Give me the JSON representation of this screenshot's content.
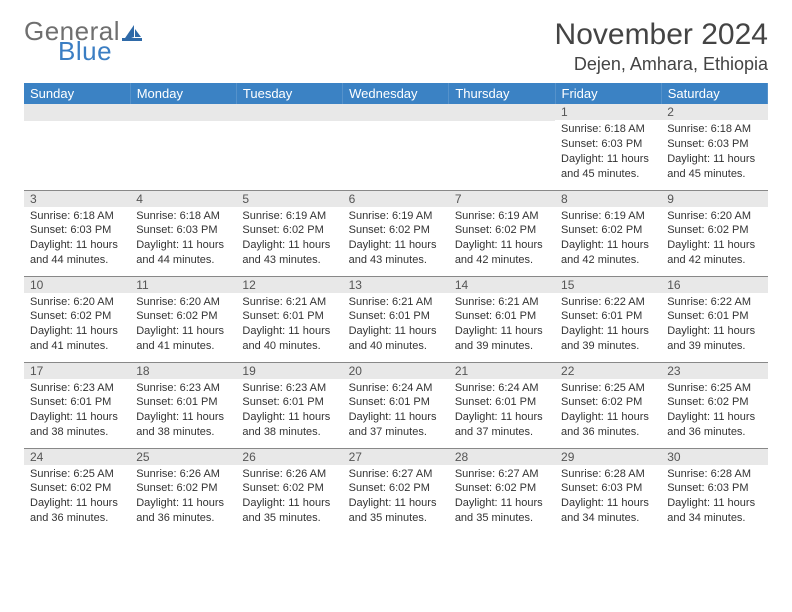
{
  "logo": {
    "word1": "General",
    "word2": "Blue"
  },
  "title": "November 2024",
  "location": "Dejen, Amhara, Ethiopia",
  "colors": {
    "header_bg": "#3b82c4",
    "header_text": "#ffffff",
    "daynum_bg": "#e8e8e8",
    "text": "#333333",
    "logo_gray": "#6f6f6f",
    "logo_blue": "#3b7ec3",
    "sail_fill": "#2f6aa8"
  },
  "dayNames": [
    "Sunday",
    "Monday",
    "Tuesday",
    "Wednesday",
    "Thursday",
    "Friday",
    "Saturday"
  ],
  "weeks": [
    [
      {
        "n": "",
        "sr": "",
        "ss": "",
        "dl": ""
      },
      {
        "n": "",
        "sr": "",
        "ss": "",
        "dl": ""
      },
      {
        "n": "",
        "sr": "",
        "ss": "",
        "dl": ""
      },
      {
        "n": "",
        "sr": "",
        "ss": "",
        "dl": ""
      },
      {
        "n": "",
        "sr": "",
        "ss": "",
        "dl": ""
      },
      {
        "n": "1",
        "sr": "Sunrise: 6:18 AM",
        "ss": "Sunset: 6:03 PM",
        "dl": "Daylight: 11 hours and 45 minutes."
      },
      {
        "n": "2",
        "sr": "Sunrise: 6:18 AM",
        "ss": "Sunset: 6:03 PM",
        "dl": "Daylight: 11 hours and 45 minutes."
      }
    ],
    [
      {
        "n": "3",
        "sr": "Sunrise: 6:18 AM",
        "ss": "Sunset: 6:03 PM",
        "dl": "Daylight: 11 hours and 44 minutes."
      },
      {
        "n": "4",
        "sr": "Sunrise: 6:18 AM",
        "ss": "Sunset: 6:03 PM",
        "dl": "Daylight: 11 hours and 44 minutes."
      },
      {
        "n": "5",
        "sr": "Sunrise: 6:19 AM",
        "ss": "Sunset: 6:02 PM",
        "dl": "Daylight: 11 hours and 43 minutes."
      },
      {
        "n": "6",
        "sr": "Sunrise: 6:19 AM",
        "ss": "Sunset: 6:02 PM",
        "dl": "Daylight: 11 hours and 43 minutes."
      },
      {
        "n": "7",
        "sr": "Sunrise: 6:19 AM",
        "ss": "Sunset: 6:02 PM",
        "dl": "Daylight: 11 hours and 42 minutes."
      },
      {
        "n": "8",
        "sr": "Sunrise: 6:19 AM",
        "ss": "Sunset: 6:02 PM",
        "dl": "Daylight: 11 hours and 42 minutes."
      },
      {
        "n": "9",
        "sr": "Sunrise: 6:20 AM",
        "ss": "Sunset: 6:02 PM",
        "dl": "Daylight: 11 hours and 42 minutes."
      }
    ],
    [
      {
        "n": "10",
        "sr": "Sunrise: 6:20 AM",
        "ss": "Sunset: 6:02 PM",
        "dl": "Daylight: 11 hours and 41 minutes."
      },
      {
        "n": "11",
        "sr": "Sunrise: 6:20 AM",
        "ss": "Sunset: 6:02 PM",
        "dl": "Daylight: 11 hours and 41 minutes."
      },
      {
        "n": "12",
        "sr": "Sunrise: 6:21 AM",
        "ss": "Sunset: 6:01 PM",
        "dl": "Daylight: 11 hours and 40 minutes."
      },
      {
        "n": "13",
        "sr": "Sunrise: 6:21 AM",
        "ss": "Sunset: 6:01 PM",
        "dl": "Daylight: 11 hours and 40 minutes."
      },
      {
        "n": "14",
        "sr": "Sunrise: 6:21 AM",
        "ss": "Sunset: 6:01 PM",
        "dl": "Daylight: 11 hours and 39 minutes."
      },
      {
        "n": "15",
        "sr": "Sunrise: 6:22 AM",
        "ss": "Sunset: 6:01 PM",
        "dl": "Daylight: 11 hours and 39 minutes."
      },
      {
        "n": "16",
        "sr": "Sunrise: 6:22 AM",
        "ss": "Sunset: 6:01 PM",
        "dl": "Daylight: 11 hours and 39 minutes."
      }
    ],
    [
      {
        "n": "17",
        "sr": "Sunrise: 6:23 AM",
        "ss": "Sunset: 6:01 PM",
        "dl": "Daylight: 11 hours and 38 minutes."
      },
      {
        "n": "18",
        "sr": "Sunrise: 6:23 AM",
        "ss": "Sunset: 6:01 PM",
        "dl": "Daylight: 11 hours and 38 minutes."
      },
      {
        "n": "19",
        "sr": "Sunrise: 6:23 AM",
        "ss": "Sunset: 6:01 PM",
        "dl": "Daylight: 11 hours and 38 minutes."
      },
      {
        "n": "20",
        "sr": "Sunrise: 6:24 AM",
        "ss": "Sunset: 6:01 PM",
        "dl": "Daylight: 11 hours and 37 minutes."
      },
      {
        "n": "21",
        "sr": "Sunrise: 6:24 AM",
        "ss": "Sunset: 6:01 PM",
        "dl": "Daylight: 11 hours and 37 minutes."
      },
      {
        "n": "22",
        "sr": "Sunrise: 6:25 AM",
        "ss": "Sunset: 6:02 PM",
        "dl": "Daylight: 11 hours and 36 minutes."
      },
      {
        "n": "23",
        "sr": "Sunrise: 6:25 AM",
        "ss": "Sunset: 6:02 PM",
        "dl": "Daylight: 11 hours and 36 minutes."
      }
    ],
    [
      {
        "n": "24",
        "sr": "Sunrise: 6:25 AM",
        "ss": "Sunset: 6:02 PM",
        "dl": "Daylight: 11 hours and 36 minutes."
      },
      {
        "n": "25",
        "sr": "Sunrise: 6:26 AM",
        "ss": "Sunset: 6:02 PM",
        "dl": "Daylight: 11 hours and 36 minutes."
      },
      {
        "n": "26",
        "sr": "Sunrise: 6:26 AM",
        "ss": "Sunset: 6:02 PM",
        "dl": "Daylight: 11 hours and 35 minutes."
      },
      {
        "n": "27",
        "sr": "Sunrise: 6:27 AM",
        "ss": "Sunset: 6:02 PM",
        "dl": "Daylight: 11 hours and 35 minutes."
      },
      {
        "n": "28",
        "sr": "Sunrise: 6:27 AM",
        "ss": "Sunset: 6:02 PM",
        "dl": "Daylight: 11 hours and 35 minutes."
      },
      {
        "n": "29",
        "sr": "Sunrise: 6:28 AM",
        "ss": "Sunset: 6:03 PM",
        "dl": "Daylight: 11 hours and 34 minutes."
      },
      {
        "n": "30",
        "sr": "Sunrise: 6:28 AM",
        "ss": "Sunset: 6:03 PM",
        "dl": "Daylight: 11 hours and 34 minutes."
      }
    ]
  ]
}
